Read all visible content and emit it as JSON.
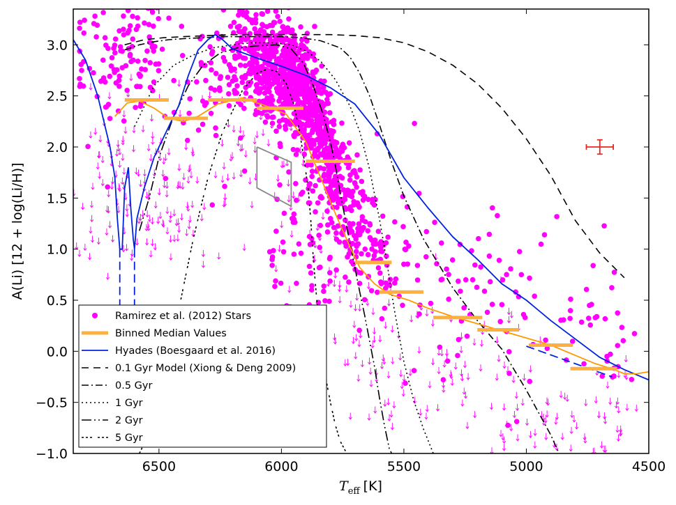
{
  "chart_data": {
    "type": "scatter",
    "title": "",
    "xlabel": {
      "symbol": "T",
      "subscript": "eff",
      "units": "[K]"
    },
    "ylabel": "A(Li) [12 + log(Li/H)]",
    "xlim": [
      6850,
      4500
    ],
    "ylim": [
      -1.0,
      3.35
    ],
    "x_ticks": [
      6500,
      6000,
      5500,
      5000,
      4500
    ],
    "x_tick_labels": [
      "6500",
      "6000",
      "5500",
      "5000",
      "4500"
    ],
    "y_ticks": [
      -1.0,
      -0.5,
      0.0,
      0.5,
      1.0,
      1.5,
      2.0,
      2.5,
      3.0
    ],
    "y_tick_labels": [
      "−1.0",
      "−0.5",
      "0.0",
      "0.5",
      "1.0",
      "1.5",
      "2.0",
      "2.5",
      "3.0"
    ],
    "legend_position": "bottom-left",
    "colors": {
      "stars": "#ff00ff",
      "binned": "#fbb040",
      "smooth": "#ff9900",
      "hyades": "#0022dd",
      "model": "#000000",
      "error_bar": "#e8271d",
      "box": "#888888"
    },
    "series": [
      {
        "name": "Ramirez et al. (2012) Stars",
        "kind": "points",
        "cloud": true
      },
      {
        "name": "Binned Median Values",
        "kind": "steps",
        "segments": [
          [
            6640,
            6460,
            2.46
          ],
          [
            6480,
            6300,
            2.28
          ],
          [
            6300,
            6100,
            2.46
          ],
          [
            6100,
            5910,
            2.38
          ],
          [
            5900,
            5700,
            1.86
          ],
          [
            5700,
            5550,
            0.87
          ],
          [
            5600,
            5420,
            0.58
          ],
          [
            5380,
            5180,
            0.33
          ],
          [
            5200,
            5030,
            0.21
          ],
          [
            4990,
            4810,
            0.06
          ],
          [
            4820,
            4630,
            -0.17
          ]
        ]
      },
      {
        "name": "Smoothed median",
        "kind": "line",
        "x": [
          6680,
          6630,
          6580,
          6520,
          6460,
          6400,
          6340,
          6260,
          6160,
          6060,
          5980,
          5900,
          5840,
          5780,
          5720,
          5680,
          5620,
          5560,
          5480,
          5400,
          5300,
          5200,
          5100,
          5000,
          4900,
          4800,
          4720,
          4640,
          4600,
          4550,
          4500
        ],
        "y": [
          2.3,
          2.43,
          2.45,
          2.38,
          2.28,
          2.25,
          2.3,
          2.42,
          2.48,
          2.4,
          2.32,
          2.05,
          1.7,
          1.35,
          1.02,
          0.82,
          0.66,
          0.56,
          0.5,
          0.42,
          0.34,
          0.27,
          0.2,
          0.13,
          0.06,
          -0.04,
          -0.12,
          -0.18,
          -0.22,
          -0.22,
          -0.2
        ]
      },
      {
        "name": "Hyades (Boesgaard et al. 2016)",
        "kind": "line",
        "x": [
          6850,
          6800,
          6750,
          6700,
          6680,
          6670,
          6660,
          6650,
          6640,
          6625,
          6615,
          6605,
          6600,
          6590,
          6560,
          6520,
          6470,
          6420,
          6380,
          6340,
          6300,
          6270,
          6240,
          6200,
          6100,
          6000,
          5900,
          5800,
          5700,
          5600,
          5500,
          5400,
          5300,
          5200,
          5100,
          5000,
          4900,
          4800,
          4700,
          4600,
          4500
        ],
        "y": [
          3.05,
          2.85,
          2.5,
          2.0,
          1.7,
          1.3,
          1.0,
          1.0,
          1.6,
          1.8,
          1.4,
          1.1,
          1.0,
          1.3,
          1.6,
          1.9,
          2.15,
          2.4,
          2.7,
          2.95,
          3.05,
          3.1,
          3.05,
          2.96,
          2.87,
          2.79,
          2.7,
          2.58,
          2.42,
          2.12,
          1.7,
          1.4,
          1.12,
          0.9,
          0.66,
          0.5,
          0.3,
          0.12,
          -0.06,
          -0.18,
          -0.28
        ]
      },
      {
        "name": "0.1 Gyr Model (Xiong & Deng 2009)",
        "kind": "line",
        "dash": "10,7",
        "x": [
          6640,
          6560,
          6480,
          6400,
          6300,
          6200,
          6100,
          6000,
          5900,
          5800,
          5700,
          5600,
          5500,
          5400,
          5300,
          5200,
          5100,
          5000,
          4900,
          4800,
          4700,
          4600
        ],
        "y": [
          3.0,
          3.05,
          3.07,
          3.08,
          3.09,
          3.1,
          3.1,
          3.1,
          3.1,
          3.1,
          3.09,
          3.07,
          3.02,
          2.93,
          2.8,
          2.62,
          2.38,
          2.08,
          1.72,
          1.28,
          0.96,
          0.72
        ]
      },
      {
        "name": "0.5 Gyr",
        "kind": "line",
        "dash": "10,4,2,4",
        "x": [
          6640,
          6580,
          6520,
          6460,
          6400,
          6320,
          6240,
          6160,
          6080,
          6000,
          5920,
          5840,
          5760,
          5720,
          5680,
          5640,
          5600,
          5550,
          5500,
          5420,
          5300,
          5200,
          5100,
          5000,
          4950,
          4900,
          4870
        ],
        "y": [
          2.95,
          3.0,
          3.03,
          3.05,
          3.06,
          3.07,
          3.08,
          3.08,
          3.08,
          3.08,
          3.07,
          3.04,
          2.97,
          2.88,
          2.72,
          2.5,
          2.22,
          1.85,
          1.52,
          1.1,
          0.62,
          0.3,
          0.02,
          -0.38,
          -0.6,
          -0.82,
          -0.98
        ]
      },
      {
        "name": "1 Gyr",
        "kind": "line",
        "dash": "2,4",
        "x": [
          6600,
          6520,
          6440,
          6360,
          6280,
          6200,
          6120,
          6040,
          5960,
          5900,
          5840,
          5780,
          5720,
          5680,
          5640,
          5600,
          5570,
          5540,
          5500,
          5460,
          5420,
          5380
        ],
        "y": [
          2.2,
          2.6,
          2.8,
          2.9,
          2.97,
          3.0,
          3.02,
          3.02,
          3.0,
          2.94,
          2.84,
          2.66,
          2.4,
          2.15,
          1.78,
          1.3,
          0.88,
          0.42,
          -0.1,
          -0.48,
          -0.76,
          -1.0
        ]
      },
      {
        "name": "2 Gyr",
        "kind": "line",
        "dash": "14,4,2,4,2,4",
        "x": [
          6580,
          6540,
          6500,
          6440,
          6380,
          6320,
          6250,
          6180,
          6100,
          6020,
          5960,
          5910,
          5870,
          5830,
          5800,
          5780,
          5760,
          5730,
          5700,
          5680,
          5660,
          5640,
          5620,
          5600,
          5580,
          5560,
          5550
        ],
        "y": [
          1.18,
          1.5,
          1.9,
          2.3,
          2.6,
          2.8,
          2.92,
          2.97,
          2.99,
          3.0,
          2.96,
          2.82,
          2.6,
          2.32,
          2.05,
          1.82,
          1.55,
          1.18,
          0.82,
          0.58,
          0.35,
          0.1,
          -0.15,
          -0.45,
          -0.72,
          -0.95,
          -1.0
        ]
      },
      {
        "name": "5 Gyr",
        "kind": "line",
        "dash": "3,3,3,3,3,8",
        "x": [
          6580,
          6520,
          6480,
          6420,
          6360,
          6300,
          6240,
          6160,
          6100,
          6060,
          6020,
          5980,
          5950,
          5930,
          5910,
          5890,
          5880,
          5870,
          5860,
          5850,
          5840,
          5820,
          5800,
          5780,
          5760,
          5740,
          5730
        ],
        "y": [
          -1.0,
          -0.7,
          -0.3,
          0.4,
          1.1,
          1.7,
          2.15,
          2.55,
          2.72,
          2.76,
          2.74,
          2.62,
          2.42,
          2.2,
          1.92,
          1.58,
          1.28,
          0.92,
          0.62,
          0.35,
          0.1,
          -0.25,
          -0.5,
          -0.72,
          -0.88,
          -0.97,
          -1.0
        ]
      },
      {
        "name": "Parallelogram",
        "kind": "polygon",
        "x": [
          6100,
          5960,
          5960,
          6100,
          6100
        ],
        "y": [
          2.0,
          1.85,
          1.42,
          1.6,
          2.0
        ]
      },
      {
        "name": "Error bar",
        "kind": "errorbar",
        "x": 4700,
        "y": 2.0,
        "xerr": 55,
        "yerr": 0.07
      }
    ],
    "legend": [
      "Ramirez et al. (2012) Stars",
      "Binned Median Values",
      "Hyades (Boesgaard et al. 2016)",
      "0.1 Gyr Model (Xiong & Deng 2009)",
      "0.5 Gyr",
      "1 Gyr",
      "2 Gyr",
      "5 Gyr"
    ]
  }
}
